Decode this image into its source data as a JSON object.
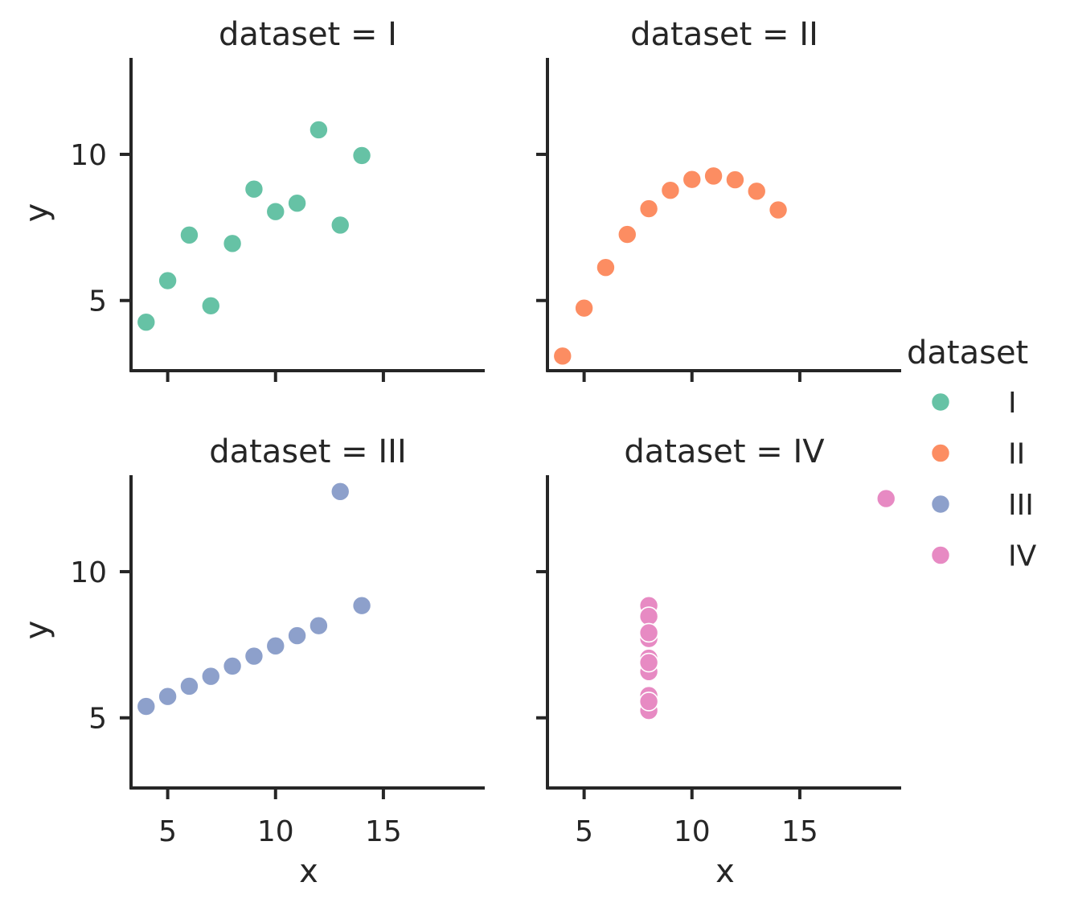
{
  "chart_data": {
    "type": "scatter",
    "facet_variable": "dataset",
    "xlabel": "x",
    "ylabel": "y",
    "xlim": [
      3.3,
      19.7
    ],
    "ylim": [
      2.6,
      13.3
    ],
    "xticks": [
      5,
      10,
      15
    ],
    "yticks": [
      5,
      10
    ],
    "grid": false,
    "legend": {
      "title": "dataset",
      "placement": "right",
      "entries": [
        {
          "label": "I",
          "color": "#66c2a5"
        },
        {
          "label": "II",
          "color": "#fc8d62"
        },
        {
          "label": "III",
          "color": "#8da0cb"
        },
        {
          "label": "IV",
          "color": "#e78ac3"
        }
      ]
    },
    "panels": [
      {
        "title": "dataset = I",
        "series": "I",
        "color": "#66c2a5",
        "x": [
          10,
          8,
          13,
          9,
          11,
          14,
          6,
          4,
          12,
          7,
          5
        ],
        "y": [
          8.04,
          6.95,
          7.58,
          8.81,
          8.33,
          9.96,
          7.24,
          4.26,
          10.84,
          4.82,
          5.68
        ]
      },
      {
        "title": "dataset = II",
        "series": "II",
        "color": "#fc8d62",
        "x": [
          10,
          8,
          13,
          9,
          11,
          14,
          6,
          4,
          12,
          7,
          5
        ],
        "y": [
          9.14,
          8.14,
          8.74,
          8.77,
          9.26,
          8.1,
          6.13,
          3.1,
          9.13,
          7.26,
          4.74
        ]
      },
      {
        "title": "dataset = III",
        "series": "III",
        "color": "#8da0cb",
        "x": [
          10,
          8,
          13,
          9,
          11,
          14,
          6,
          4,
          12,
          7,
          5
        ],
        "y": [
          7.46,
          6.77,
          12.74,
          7.11,
          7.81,
          8.84,
          6.08,
          5.39,
          8.15,
          6.42,
          5.73
        ]
      },
      {
        "title": "dataset = IV",
        "series": "IV",
        "color": "#e78ac3",
        "x": [
          8,
          8,
          8,
          8,
          8,
          8,
          8,
          19,
          8,
          8,
          8
        ],
        "y": [
          6.58,
          5.76,
          7.71,
          8.84,
          8.47,
          7.04,
          5.25,
          12.5,
          5.56,
          7.91,
          6.89
        ]
      }
    ]
  }
}
